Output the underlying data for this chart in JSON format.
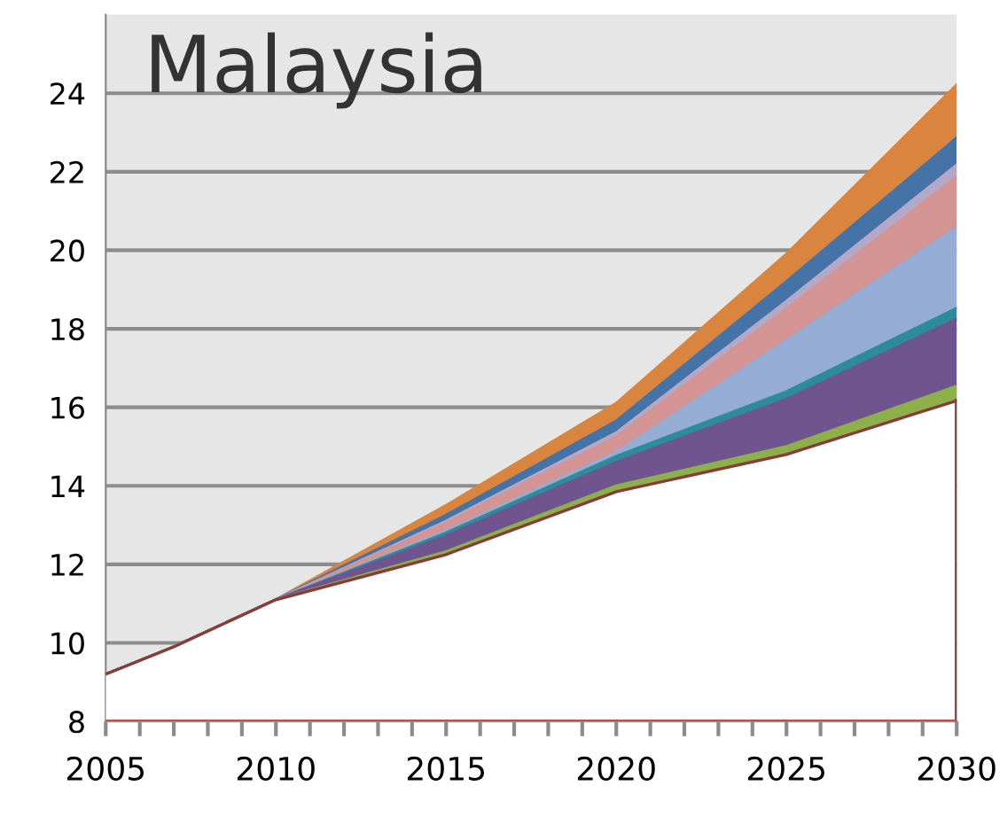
{
  "chart_data": {
    "type": "area",
    "title": "Malaysia",
    "x": [
      2005,
      2006,
      2007,
      2008,
      2009,
      2010,
      2015,
      2020,
      2025,
      2030
    ],
    "series": [
      {
        "color": "#ffffff",
        "values": [
          9.2,
          9.55,
          9.9,
          10.3,
          10.7,
          11.1,
          12.25,
          13.85,
          14.8,
          16.17
        ]
      },
      {
        "color": "#8db04a",
        "values": [
          9.2,
          9.55,
          9.9,
          10.3,
          10.7,
          11.1,
          12.32,
          14.0,
          15.0,
          16.54
        ]
      },
      {
        "color": "#6f5490",
        "values": [
          9.2,
          9.55,
          9.9,
          10.3,
          10.7,
          11.1,
          12.72,
          14.6,
          16.2,
          18.24
        ]
      },
      {
        "color": "#2e8b9a",
        "values": [
          9.2,
          9.55,
          9.9,
          10.3,
          10.7,
          11.1,
          12.8,
          14.75,
          16.4,
          18.52
        ]
      },
      {
        "color": "#95acd4",
        "values": [
          9.2,
          9.55,
          9.9,
          10.3,
          10.7,
          11.1,
          12.85,
          14.85,
          17.7,
          20.57
        ]
      },
      {
        "color": "#d49494",
        "values": [
          9.2,
          9.55,
          9.9,
          10.3,
          10.7,
          11.1,
          13.05,
          15.25,
          18.5,
          21.87
        ]
      },
      {
        "color": "#b4a8c8",
        "values": [
          9.2,
          9.55,
          9.9,
          10.3,
          10.7,
          11.1,
          13.1,
          15.35,
          18.7,
          22.17
        ]
      },
      {
        "color": "#4573a7",
        "values": [
          9.2,
          9.55,
          9.9,
          10.3,
          10.7,
          11.1,
          13.25,
          15.65,
          19.2,
          22.86
        ]
      },
      {
        "color": "#d9853f",
        "values": [
          9.2,
          9.55,
          9.9,
          10.3,
          10.7,
          11.1,
          13.5,
          16.1,
          19.9,
          24.21
        ]
      }
    ],
    "xlim": [
      2005,
      2030
    ],
    "xticks": [
      2005,
      {
        "value": 2006,
        "label": null
      },
      {
        "value": 2007,
        "label": null
      },
      {
        "value": 2008,
        "label": null
      },
      {
        "value": 2009,
        "label": null
      },
      2010,
      {
        "value": 2011,
        "label": null
      },
      {
        "value": 2012,
        "label": null
      },
      {
        "value": 2013,
        "label": null
      },
      {
        "value": 2014,
        "label": null
      },
      2015,
      {
        "value": 2016,
        "label": null
      },
      {
        "value": 2017,
        "label": null
      },
      {
        "value": 2018,
        "label": null
      },
      {
        "value": 2019,
        "label": null
      },
      2020,
      {
        "value": 2021,
        "label": null
      },
      {
        "value": 2022,
        "label": null
      },
      {
        "value": 2023,
        "label": null
      },
      {
        "value": 2024,
        "label": null
      },
      2025,
      {
        "value": 2026,
        "label": null
      },
      {
        "value": 2027,
        "label": null
      },
      {
        "value": 2028,
        "label": null
      },
      {
        "value": 2029,
        "label": null
      },
      2030
    ],
    "ylim": [
      8,
      26
    ],
    "yticks": [
      8,
      10,
      12,
      14,
      16,
      18,
      20,
      22,
      24
    ],
    "grid": "y",
    "legend": false
  }
}
